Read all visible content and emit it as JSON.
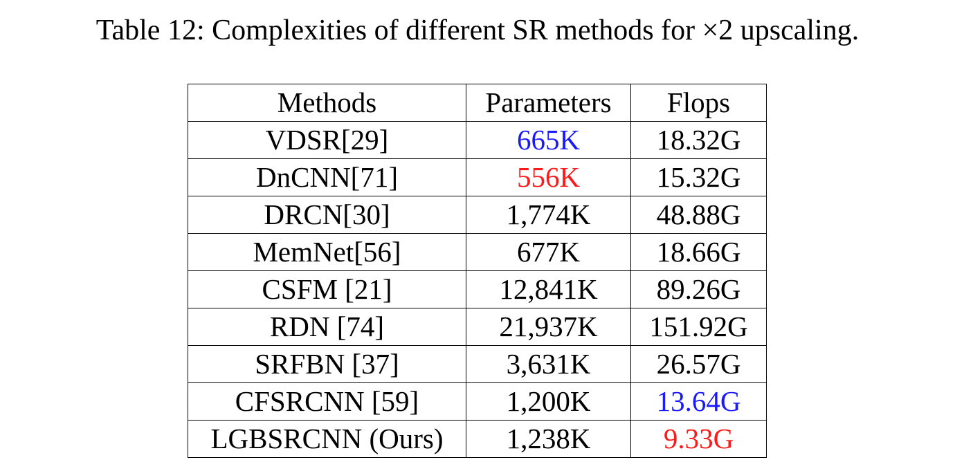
{
  "caption": "Table 12: Complexities of different SR methods for ×2 upscaling.",
  "table": {
    "headers": [
      "Methods",
      "Parameters",
      "Flops"
    ],
    "rows": [
      {
        "method": "VDSR[29]",
        "parameters": "665K",
        "flops": "18.32G",
        "parameters_color": "#1a1aff",
        "flops_color": "#000000"
      },
      {
        "method": "DnCNN[71]",
        "parameters": "556K",
        "flops": "15.32G",
        "parameters_color": "#ff1a1a",
        "flops_color": "#000000"
      },
      {
        "method": "DRCN[30]",
        "parameters": "1,774K",
        "flops": "48.88G",
        "parameters_color": "#000000",
        "flops_color": "#000000"
      },
      {
        "method": "MemNet[56]",
        "parameters": "677K",
        "flops": "18.66G",
        "parameters_color": "#000000",
        "flops_color": "#000000"
      },
      {
        "method": "CSFM [21]",
        "parameters": "12,841K",
        "flops": "89.26G",
        "parameters_color": "#000000",
        "flops_color": "#000000"
      },
      {
        "method": "RDN [74]",
        "parameters": "21,937K",
        "flops": "151.92G",
        "parameters_color": "#000000",
        "flops_color": "#000000"
      },
      {
        "method": "SRFBN [37]",
        "parameters": "3,631K",
        "flops": "26.57G",
        "parameters_color": "#000000",
        "flops_color": "#000000"
      },
      {
        "method": "CFSRCNN [59]",
        "parameters": "1,200K",
        "flops": "13.64G",
        "parameters_color": "#000000",
        "flops_color": "#1a1aff"
      },
      {
        "method": "LGBSRCNN (Ours)",
        "parameters": "1,238K",
        "flops": "9.33G",
        "parameters_color": "#000000",
        "flops_color": "#ff1a1a"
      }
    ]
  }
}
